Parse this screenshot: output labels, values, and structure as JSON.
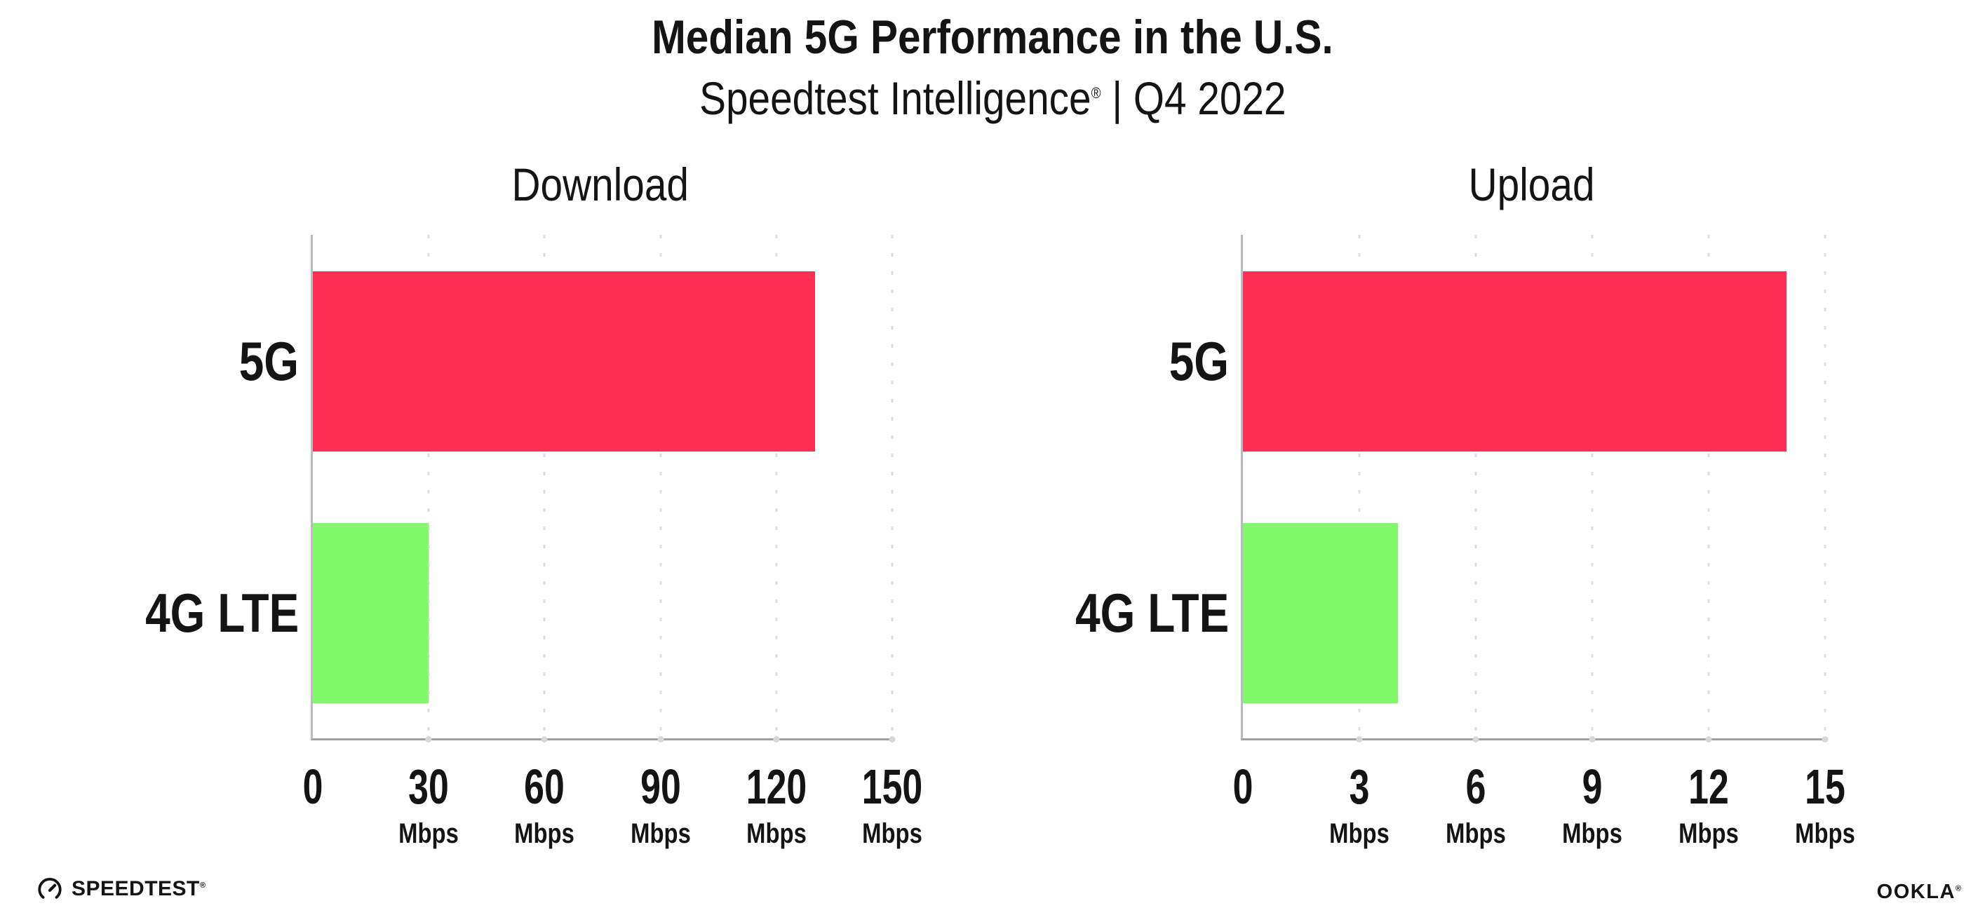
{
  "header": {
    "title": "Median 5G Performance in the U.S.",
    "subtitle_brand": "Speedtest Intelligence",
    "subtitle_reg": "®",
    "subtitle_rest": " | Q4 2022"
  },
  "chart_data": {
    "type": "bar",
    "orientation": "horizontal",
    "title": "Median 5G Performance in the U.S.",
    "subtitle": "Speedtest Intelligence® | Q4 2022",
    "categories": [
      "5G",
      "4G LTE"
    ],
    "charts": [
      {
        "title": "Download",
        "unit": "Mbps",
        "xlabel_unit": "Mbps",
        "xlim": [
          0,
          150
        ],
        "ticks": [
          0,
          30,
          60,
          90,
          120,
          150
        ],
        "values": [
          130,
          30
        ]
      },
      {
        "title": "Upload",
        "unit": "Mbps",
        "xlabel_unit": "Mbps",
        "xlim": [
          0,
          15
        ],
        "ticks": [
          0,
          3,
          6,
          9,
          12,
          15
        ],
        "values": [
          14,
          4
        ]
      }
    ],
    "series_colors": {
      "5G": "#FF2E55",
      "4G LTE": "#80FA68"
    },
    "axis_color": "#9e9ea4",
    "grid_color": "#dedee6",
    "grid": "dotted vertical gridlines at each tick",
    "legend": "none",
    "value_labels": "none"
  },
  "footer": {
    "speedtest_label": "SPEEDTEST",
    "speedtest_reg": "®",
    "ookla_label": "OOKLA",
    "ookla_reg": "®"
  }
}
